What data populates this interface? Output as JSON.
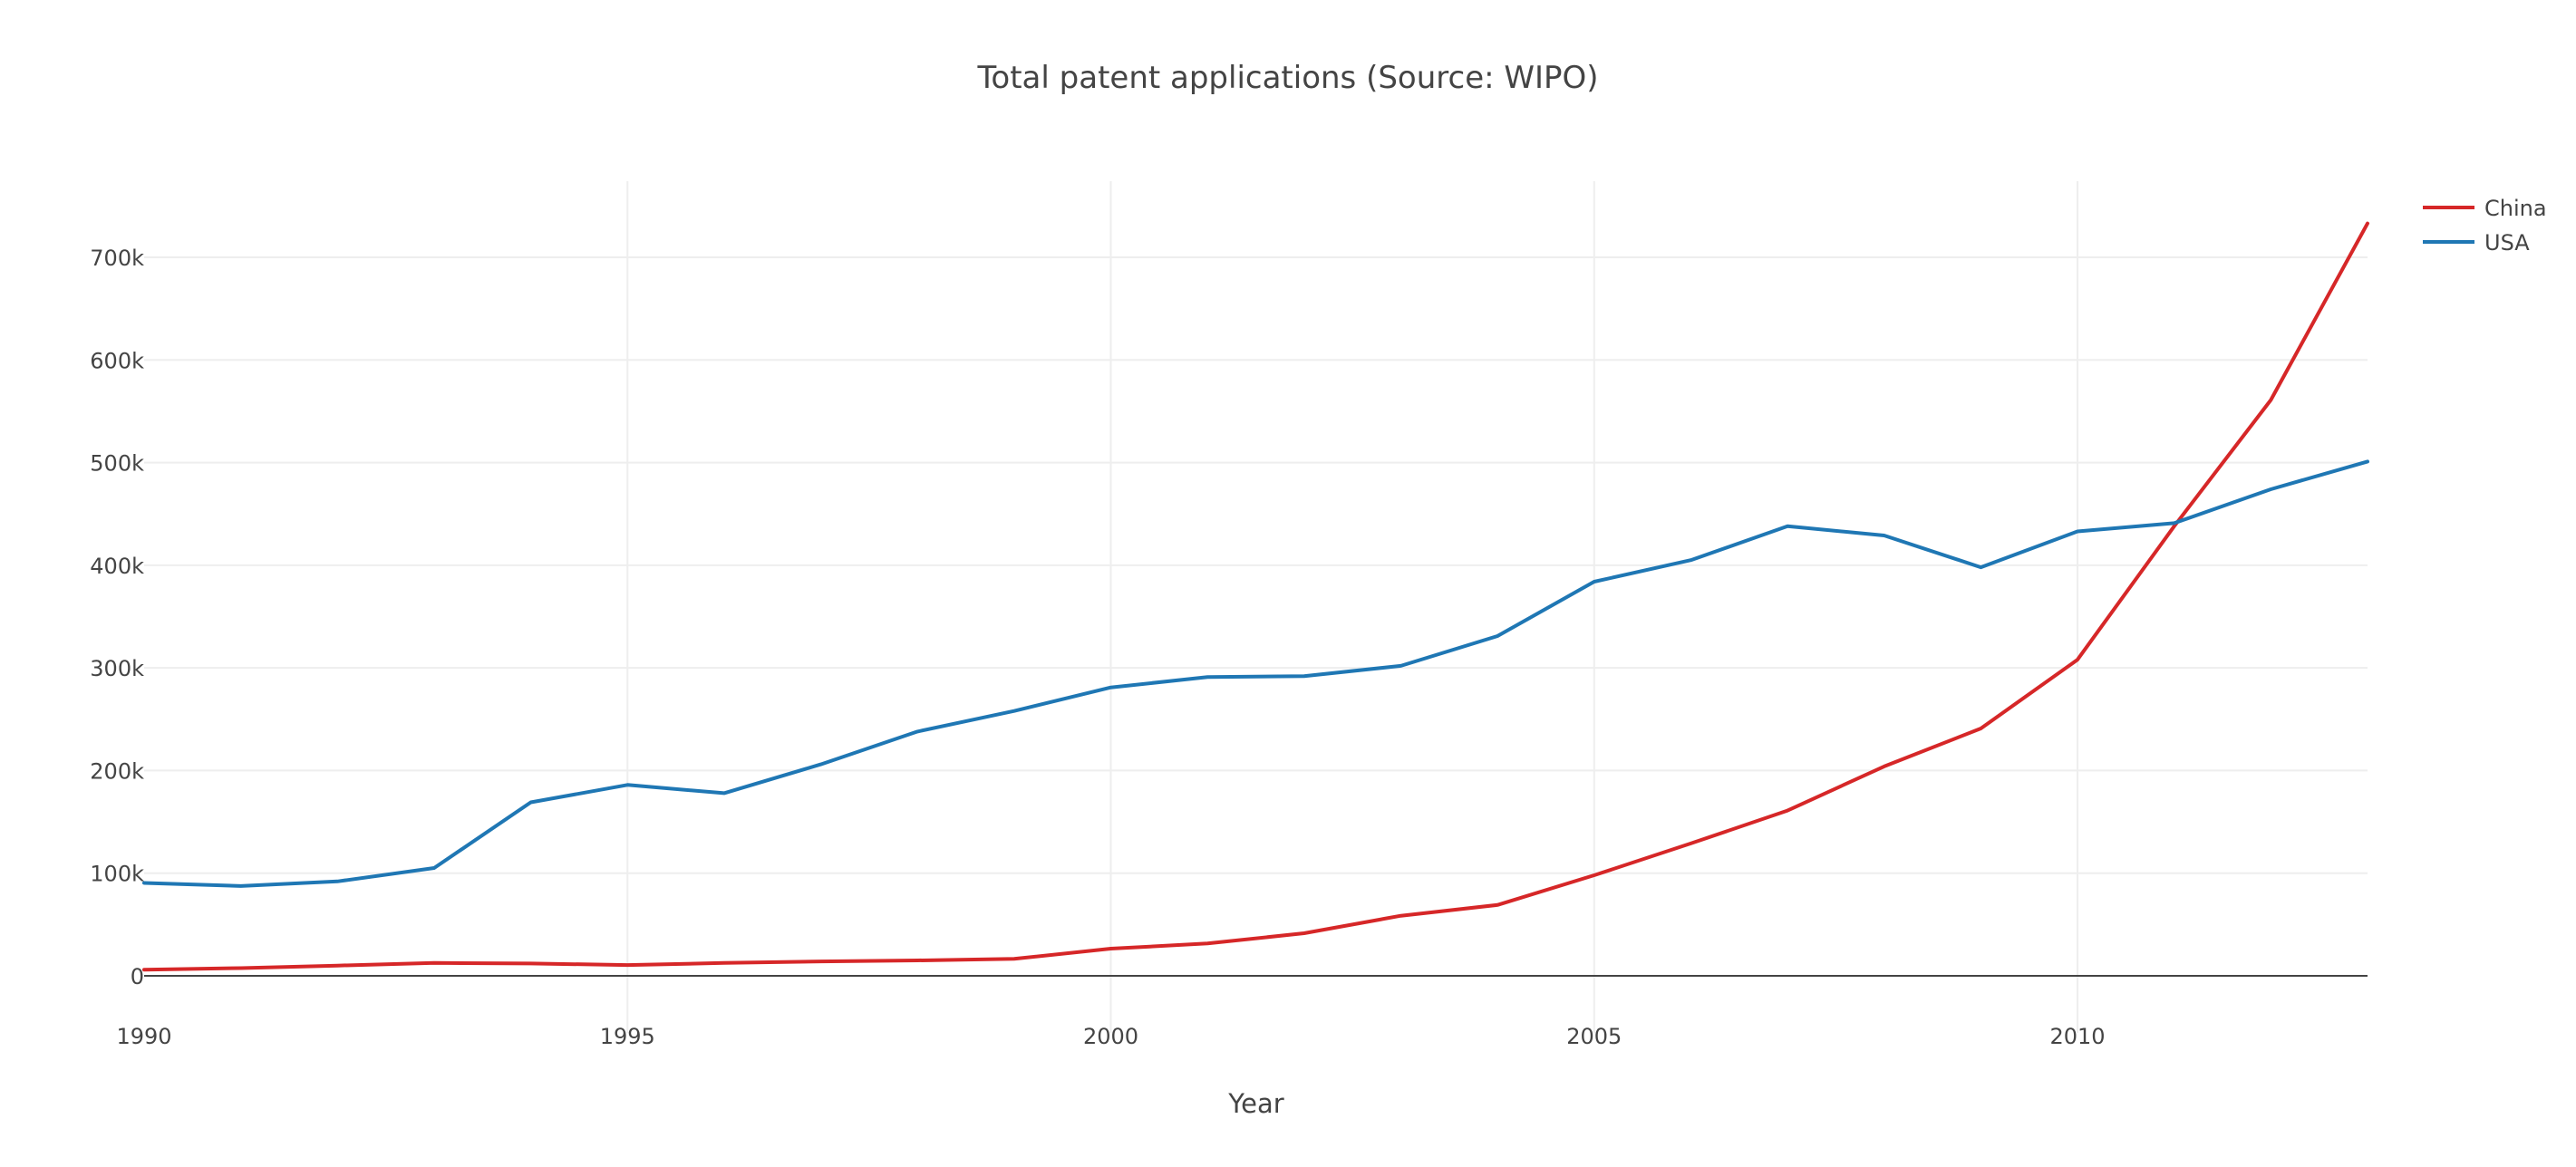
{
  "chart_data": {
    "type": "line",
    "title": "Total patent applications  (Source: WIPO)",
    "xlabel": "Year",
    "ylabel": "",
    "xlim": [
      1990,
      2013
    ],
    "ylim": [
      -48000,
      775000
    ],
    "x_ticks": [
      1990,
      1995,
      2000,
      2005,
      2010
    ],
    "x_tick_labels": [
      "1990",
      "1995",
      "2000",
      "2005",
      "2010"
    ],
    "y_ticks": [
      0,
      100000,
      200000,
      300000,
      400000,
      500000,
      600000,
      700000
    ],
    "y_tick_labels": [
      "0",
      "100k",
      "200k",
      "300k",
      "400k",
      "500k",
      "600k",
      "700k"
    ],
    "grid": true,
    "legend_position": "top-right",
    "x": [
      1990,
      1991,
      1992,
      1993,
      1994,
      1995,
      1996,
      1997,
      1998,
      1999,
      2000,
      2001,
      2002,
      2003,
      2004,
      2005,
      2006,
      2007,
      2008,
      2009,
      2010,
      2011,
      2012,
      2013
    ],
    "series": [
      {
        "name": "China",
        "color": "#d62728",
        "values": [
          6000,
          7500,
          10000,
          12500,
          12000,
          10500,
          12500,
          14000,
          15000,
          16500,
          26500,
          31500,
          41500,
          58500,
          69000,
          98000,
          129000,
          161000,
          204000,
          241000,
          308000,
          438000,
          561000,
          733000
        ]
      },
      {
        "name": "USA",
        "color": "#1f77b4",
        "values": [
          90500,
          87500,
          92000,
          105000,
          169000,
          186000,
          178000,
          206000,
          238000,
          258000,
          281000,
          291000,
          292000,
          302000,
          331000,
          384000,
          405000,
          438000,
          429000,
          398000,
          433000,
          441000,
          474000,
          501000
        ]
      }
    ]
  }
}
